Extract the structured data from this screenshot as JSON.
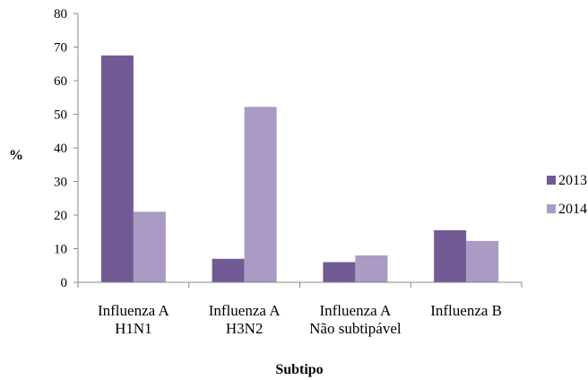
{
  "chart_data": {
    "type": "bar",
    "title": "",
    "xlabel": "Subtipo",
    "ylabel": "%",
    "ylim": [
      0,
      80
    ],
    "yticks": [
      0,
      10,
      20,
      30,
      40,
      50,
      60,
      70,
      80
    ],
    "grid": false,
    "legend_position": "right",
    "categories": [
      [
        "Influenza A",
        "H1N1"
      ],
      [
        "Influenza A",
        "H3N2"
      ],
      [
        "Influenza A",
        "Não subtipável"
      ],
      [
        "Influenza B"
      ]
    ],
    "series": [
      {
        "name": "2013",
        "color": "#725a94",
        "values": [
          67.5,
          7,
          6,
          15.5
        ]
      },
      {
        "name": "2014",
        "color": "#a99bc4",
        "values": [
          21,
          52.2,
          8,
          12.3
        ]
      }
    ]
  }
}
